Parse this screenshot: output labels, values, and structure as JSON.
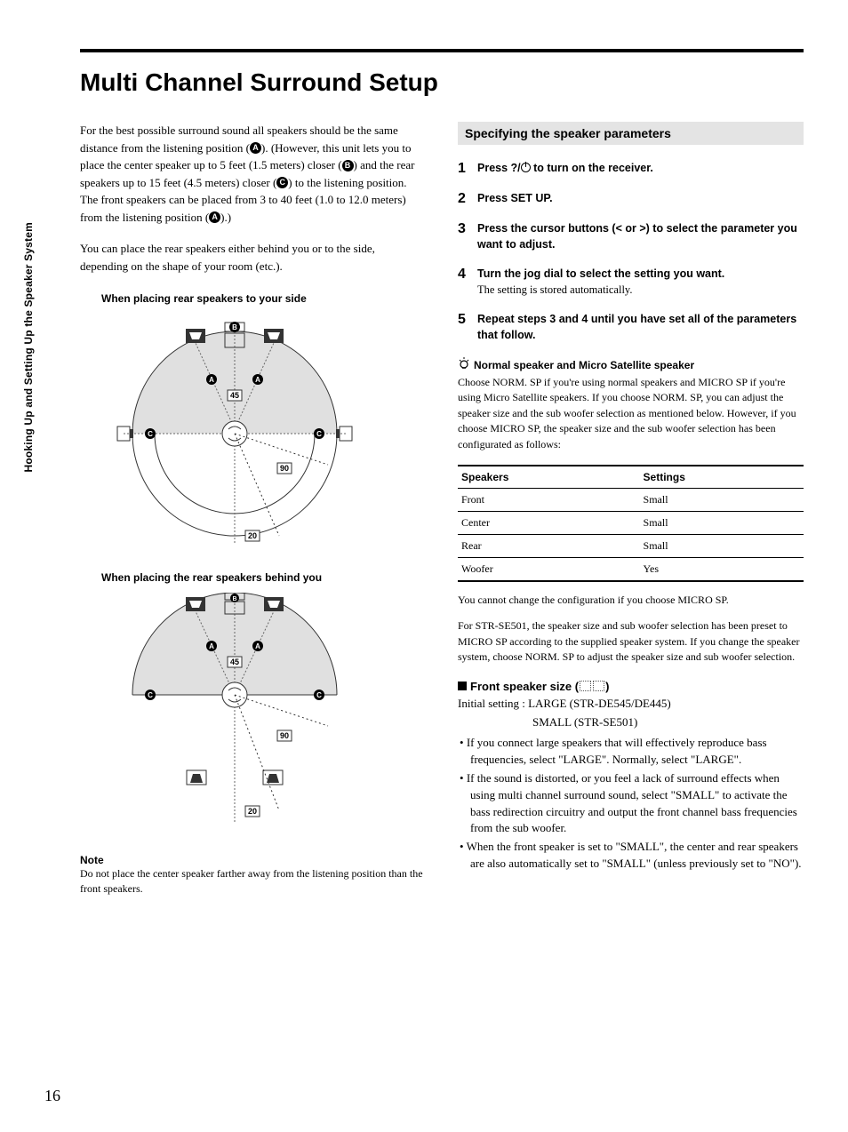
{
  "sideLabel": "Hooking Up and Setting Up the Speaker System",
  "pageNumber": "16",
  "title": "Multi Channel Surround Setup",
  "intro": {
    "p1a": "For the best possible surround sound all speakers should be the same distance from the listening position (",
    "p1b": "). (However, this unit lets you to place the center speaker up to 5 feet (1.5 meters) closer (",
    "p1c": ") and the rear speakers up to 15 feet (4.5 meters) closer (",
    "p1d": ") to the listening position. The front speakers can be placed from 3 to 40 feet (1.0 to 12.0 meters) from the listening position (",
    "p1e": ").)",
    "p2": "You can place the rear speakers either behind you or to the side, depending on the shape of your room (etc.).",
    "labelA": "A",
    "labelB": "B",
    "labelC": "C"
  },
  "diagram": {
    "caption1": "When placing rear speakers to your side",
    "caption2": "When placing the rear speakers behind you",
    "angle45": "45",
    "angle90": "90",
    "angle20": "20"
  },
  "note": {
    "head": "Note",
    "body": "Do not place the center speaker farther away from the listening position than the front speakers."
  },
  "sectionBar": "Specifying the speaker parameters",
  "steps": {
    "s1": {
      "num": "1",
      "bold": "Press ?/   to turn on the receiver."
    },
    "s2": {
      "num": "2",
      "bold": "Press SET UP."
    },
    "s3": {
      "num": "3",
      "boldA": "Press the cursor buttons (",
      "boldB": " or ",
      "boldC": ") to select the parameter you want to adjust."
    },
    "s4": {
      "num": "4",
      "bold": "Turn the jog dial to select the setting you want.",
      "plain": "The setting is stored automatically."
    },
    "s5": {
      "num": "5",
      "bold": "Repeat steps 3 and 4 until you have set all of the parameters that follow."
    }
  },
  "tipHead": "Normal speaker and Micro Satellite speaker",
  "tipBody": "Choose NORM. SP if you're using normal speakers and MICRO SP if you're using Micro Satellite speakers. If you choose NORM. SP, you can adjust the speaker size and the sub woofer selection as mentioned below. However, if you choose MICRO SP, the speaker size and the sub woofer selection has been configurated as follows:",
  "table": {
    "h1": "Speakers",
    "h2": "Settings",
    "rows": [
      [
        "Front",
        "Small"
      ],
      [
        "Center",
        "Small"
      ],
      [
        "Rear",
        "Small"
      ],
      [
        "Woofer",
        "Yes"
      ]
    ]
  },
  "afterTable1": "You cannot change the configuration if you choose MICRO SP.",
  "afterTable2": "For STR-SE501, the speaker size and sub woofer selection has been preset to MICRO SP according to the supplied speaker system. If you change the speaker system, choose NORM. SP to adjust the speaker size and sub woofer selection.",
  "front": {
    "head": "Front speaker size (",
    "headEnd": ")",
    "init1": "Initial setting : LARGE (STR-DE545/DE445)",
    "init2": "SMALL (STR-SE501)",
    "b1": "If you connect large speakers that will effectively reproduce bass frequencies, select \"LARGE\". Normally, select \"LARGE\".",
    "b2": "If the sound is distorted, or you feel a lack of surround effects when using multi channel surround sound, select \"SMALL\" to activate the bass redirection circuitry and output the front channel bass frequencies from the sub woofer.",
    "b3": "When the front speaker is set to \"SMALL\", the center and rear speakers are also automatically set to \"SMALL\" (unless previously set to \"NO\")."
  }
}
